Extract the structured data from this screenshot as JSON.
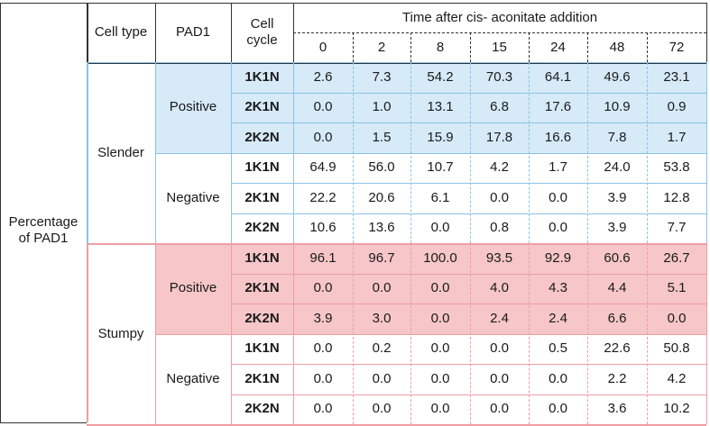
{
  "row_header": "Percentage\nof PAD1",
  "headers": {
    "cell_type": "Cell type",
    "pad1": "PAD1",
    "cell_cycle": "Cell\ncycle",
    "time_title": "Time after cis- aconitate addition",
    "times": [
      "0",
      "2",
      "8",
      "15",
      "24",
      "48",
      "72"
    ]
  },
  "groups": [
    {
      "cell_type": "Slender",
      "subgroups": [
        {
          "pad1": "Positive",
          "rows": [
            {
              "cycle": "1K1N",
              "values": [
                "2.6",
                "7.3",
                "54.2",
                "70.3",
                "64.1",
                "49.6",
                "23.1"
              ]
            },
            {
              "cycle": "2K1N",
              "values": [
                "0.0",
                "1.0",
                "13.1",
                "6.8",
                "17.6",
                "10.9",
                "0.9"
              ]
            },
            {
              "cycle": "2K2N",
              "values": [
                "0.0",
                "1.5",
                "15.9",
                "17.8",
                "16.6",
                "7.8",
                "1.7"
              ]
            }
          ]
        },
        {
          "pad1": "Negative",
          "rows": [
            {
              "cycle": "1K1N",
              "values": [
                "64.9",
                "56.0",
                "10.7",
                "4.2",
                "1.7",
                "24.0",
                "53.8"
              ]
            },
            {
              "cycle": "2K1N",
              "values": [
                "22.2",
                "20.6",
                "6.1",
                "0.0",
                "0.0",
                "3.9",
                "12.8"
              ]
            },
            {
              "cycle": "2K2N",
              "values": [
                "10.6",
                "13.6",
                "0.0",
                "0.8",
                "0.0",
                "3.9",
                "7.7"
              ]
            }
          ]
        }
      ]
    },
    {
      "cell_type": "Stumpy",
      "subgroups": [
        {
          "pad1": "Positive",
          "rows": [
            {
              "cycle": "1K1N",
              "values": [
                "96.1",
                "96.7",
                "100.0",
                "93.5",
                "92.9",
                "60.6",
                "26.7"
              ]
            },
            {
              "cycle": "2K1N",
              "values": [
                "0.0",
                "0.0",
                "0.0",
                "4.0",
                "4.3",
                "4.4",
                "5.1"
              ]
            },
            {
              "cycle": "2K2N",
              "values": [
                "3.9",
                "3.0",
                "0.0",
                "2.4",
                "2.4",
                "6.6",
                "0.0"
              ]
            }
          ]
        },
        {
          "pad1": "Negative",
          "rows": [
            {
              "cycle": "1K1N",
              "values": [
                "0.0",
                "0.2",
                "0.0",
                "0.0",
                "0.5",
                "22.6",
                "50.8"
              ]
            },
            {
              "cycle": "2K1N",
              "values": [
                "0.0",
                "0.0",
                "0.0",
                "0.0",
                "0.0",
                "2.2",
                "4.2"
              ]
            },
            {
              "cycle": "2K2N",
              "values": [
                "0.0",
                "0.0",
                "0.0",
                "0.0",
                "0.0",
                "3.6",
                "10.2"
              ]
            }
          ]
        }
      ]
    }
  ],
  "colors": {
    "slender_positive_fill": "#d6eaf8",
    "slender_border": "#8cc3e6",
    "stumpy_positive_fill": "#f6c6c8",
    "stumpy_border": "#ee9ea3",
    "grid_dark": "#333333"
  }
}
